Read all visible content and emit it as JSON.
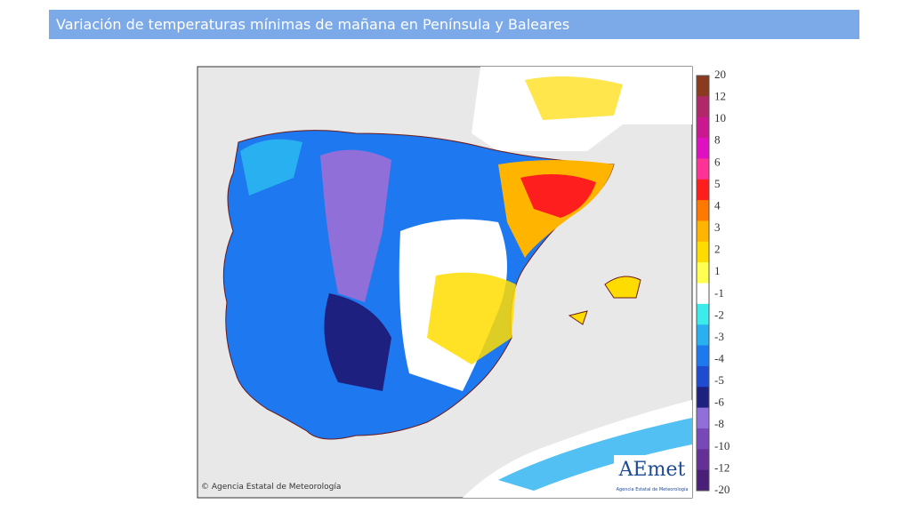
{
  "header": {
    "title": "Variación de temperaturas mínimas de mañana en Península y Baleares"
  },
  "legend": {
    "labels": [
      20,
      12,
      10,
      8,
      6,
      5,
      4,
      3,
      2,
      1,
      -1,
      -2,
      -3,
      -4,
      -5,
      -6,
      -8,
      -10,
      -12,
      -20
    ],
    "colors": [
      "#8b3a1f",
      "#b02868",
      "#cc1890",
      "#e010c0",
      "#ff3296",
      "#ff1e1e",
      "#ff7800",
      "#ffb400",
      "#ffdc00",
      "#ffff50",
      "#ffffff",
      "#3cecec",
      "#28b0f0",
      "#1e78f0",
      "#1e4bd2",
      "#1e2080",
      "#9070d8",
      "#7848b8",
      "#643098",
      "#4b1e78"
    ]
  },
  "map": {
    "credit": "© Agencia Estatal de Meteorología",
    "logo": "AEmet",
    "logo_subtitle": "Agencia Estatal de Meteorología"
  }
}
